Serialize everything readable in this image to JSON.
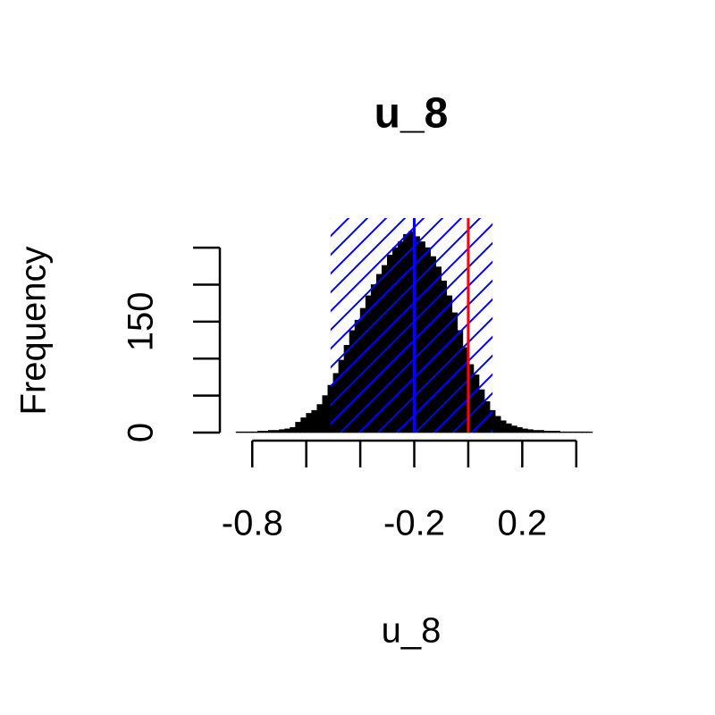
{
  "chart_data": {
    "type": "histogram",
    "title": "u_8",
    "x_label": "u_8",
    "y_label": "Frequency",
    "bins": [
      -0.86,
      -0.84,
      -0.82,
      -0.8,
      -0.78,
      -0.76,
      -0.74,
      -0.72,
      -0.7,
      -0.68,
      -0.66,
      -0.64,
      -0.62,
      -0.6,
      -0.58,
      -0.56,
      -0.54,
      -0.52,
      -0.5,
      -0.48,
      -0.46,
      -0.44,
      -0.42,
      -0.4,
      -0.38,
      -0.36,
      -0.34,
      -0.32,
      -0.3,
      -0.28,
      -0.26,
      -0.24,
      -0.22,
      -0.2,
      -0.18,
      -0.16,
      -0.14,
      -0.12,
      -0.1,
      -0.08,
      -0.06,
      -0.04,
      -0.02,
      0.0,
      0.02,
      0.04,
      0.06,
      0.08,
      0.1,
      0.12,
      0.14,
      0.16,
      0.18,
      0.2,
      0.22,
      0.24,
      0.26,
      0.28,
      0.3,
      0.32,
      0.34,
      0.36,
      0.38,
      0.4,
      0.42,
      0.44,
      0.46
    ],
    "values": [
      1,
      1,
      1,
      1,
      2,
      2,
      3,
      3,
      4,
      5,
      7,
      14,
      20,
      26,
      30,
      38,
      50,
      64,
      80,
      98,
      118,
      138,
      152,
      168,
      185,
      200,
      214,
      226,
      240,
      250,
      258,
      268,
      272,
      265,
      258,
      250,
      238,
      224,
      205,
      185,
      162,
      138,
      115,
      92,
      78,
      58,
      42,
      30,
      22,
      16,
      12,
      9,
      7,
      5,
      4,
      3,
      3,
      2,
      2,
      2,
      1,
      1,
      1,
      1,
      1,
      1
    ],
    "color": "#000000",
    "xlim": [
      -0.92,
      0.51
    ],
    "ylim": [
      0,
      290
    ],
    "xticks": [
      -0.8,
      {
        "value": -0.6,
        "label": null
      },
      {
        "value": -0.4,
        "label": null
      },
      -0.2,
      {
        "value": 0,
        "label": null
      },
      0.2,
      {
        "value": 0.4,
        "label": null
      }
    ],
    "yticks": [
      0,
      {
        "value": 50,
        "label": null
      },
      {
        "value": 100,
        "label": null
      },
      150,
      {
        "value": 200,
        "label": null
      },
      {
        "value": 250,
        "label": null
      }
    ],
    "interval": [
      -0.51,
      0.09
    ],
    "interval_color": "#0000ff",
    "vlines": [
      {
        "value": -0.2,
        "color": "#0000ff"
      },
      {
        "value": 0,
        "color": "#ff0000"
      }
    ]
  }
}
